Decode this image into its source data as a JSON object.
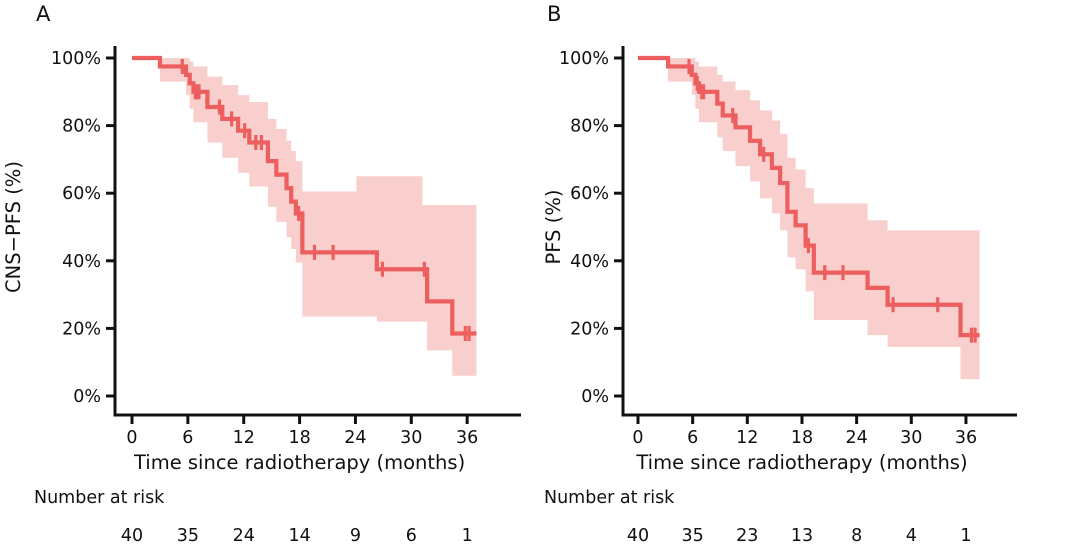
{
  "figure": {
    "background": "#ffffff"
  },
  "colors": {
    "curve": "#ed5e5e",
    "confidence_band": "#f9cfcd",
    "axis": "#111111",
    "text": "#111111"
  },
  "chart_data": [
    {
      "type": "line",
      "subtype": "kaplan-meier-step",
      "panel_label": "A",
      "title": "",
      "xlabel": "Time since radiotherapy (months)",
      "ylabel": "CNS−PFS (%)",
      "xlim": [
        0,
        38
      ],
      "ylim": [
        0,
        100
      ],
      "x_ticks": [
        0,
        6,
        12,
        18,
        24,
        30,
        36
      ],
      "y_ticks": [
        100,
        80,
        60,
        40,
        20,
        0
      ],
      "y_tick_suffix": "%",
      "grid": false,
      "legend": false,
      "survival_steps": [
        [
          0,
          100
        ],
        [
          3,
          97.5
        ],
        [
          5.8,
          95
        ],
        [
          6.2,
          92.5
        ],
        [
          6.6,
          90
        ],
        [
          8.1,
          85.5
        ],
        [
          9.7,
          82
        ],
        [
          11.4,
          78.5
        ],
        [
          12.6,
          75
        ],
        [
          14.6,
          69.5
        ],
        [
          15.5,
          65.5
        ],
        [
          16.6,
          61.5
        ],
        [
          17.1,
          57.5
        ],
        [
          17.6,
          54
        ],
        [
          18.3,
          42.5
        ],
        [
          26.3,
          37.5
        ],
        [
          31.7,
          28
        ],
        [
          34.4,
          18.5
        ]
      ],
      "curve_end_time": 37,
      "censor_marks": [
        [
          5.4,
          97.5
        ],
        [
          6.8,
          90
        ],
        [
          7,
          90
        ],
        [
          7.2,
          90
        ],
        [
          9.4,
          85.5
        ],
        [
          10.7,
          82
        ],
        [
          12.1,
          78.5
        ],
        [
          13.3,
          75
        ],
        [
          13.9,
          75
        ],
        [
          17.9,
          54
        ],
        [
          19.6,
          42.5
        ],
        [
          21.6,
          42.5
        ],
        [
          26.9,
          37.5
        ],
        [
          31.4,
          37.5
        ],
        [
          35.8,
          18.5
        ],
        [
          36.2,
          18.5
        ]
      ],
      "ci_band": [
        [
          3,
          100,
          93
        ],
        [
          5.8,
          100,
          89
        ],
        [
          6.2,
          99,
          85
        ],
        [
          6.6,
          97.5,
          81
        ],
        [
          8.1,
          94.5,
          75
        ],
        [
          9.7,
          92,
          70.5
        ],
        [
          11.4,
          89,
          66
        ],
        [
          12.6,
          87,
          62
        ],
        [
          14.6,
          82,
          56
        ],
        [
          15.5,
          79,
          51.5
        ],
        [
          16.6,
          75.5,
          47
        ],
        [
          17.1,
          72.5,
          43.5
        ],
        [
          17.6,
          69.5,
          39.5
        ],
        [
          18.3,
          60.5,
          23.5
        ],
        [
          24.1,
          65,
          23.5
        ],
        [
          26.3,
          65,
          22
        ],
        [
          31.2,
          56.5,
          22
        ],
        [
          31.7,
          56.5,
          13.5
        ],
        [
          34.4,
          56.5,
          6
        ]
      ],
      "risk_table": {
        "label": "Number at risk",
        "times": [
          0,
          6,
          12,
          18,
          24,
          30,
          36
        ],
        "counts": [
          40,
          35,
          24,
          14,
          9,
          6,
          1
        ]
      }
    },
    {
      "type": "line",
      "subtype": "kaplan-meier-step",
      "panel_label": "B",
      "title": "",
      "xlabel": "Time since radiotherapy (months)",
      "ylabel": "PFS (%)",
      "xlim": [
        0,
        38
      ],
      "ylim": [
        0,
        100
      ],
      "x_ticks": [
        0,
        6,
        12,
        18,
        24,
        30,
        36
      ],
      "y_ticks": [
        100,
        80,
        60,
        40,
        20,
        0
      ],
      "y_tick_suffix": "%",
      "grid": false,
      "legend": false,
      "survival_steps": [
        [
          0,
          100
        ],
        [
          3.3,
          97.5
        ],
        [
          5.9,
          95
        ],
        [
          6.3,
          92.5
        ],
        [
          6.7,
          90
        ],
        [
          8.7,
          86.5
        ],
        [
          9.3,
          83
        ],
        [
          10.7,
          79.5
        ],
        [
          12.3,
          75.5
        ],
        [
          13.4,
          71.5
        ],
        [
          14.7,
          67.5
        ],
        [
          15.6,
          63
        ],
        [
          16.4,
          54.5
        ],
        [
          17.3,
          50.5
        ],
        [
          18.4,
          44.5
        ],
        [
          19.3,
          36.5
        ],
        [
          25.2,
          32
        ],
        [
          27.4,
          27
        ],
        [
          35.4,
          18
        ]
      ],
      "curve_end_time": 37.5,
      "censor_marks": [
        [
          5.6,
          97.5
        ],
        [
          6.5,
          92.5
        ],
        [
          7,
          90
        ],
        [
          7.2,
          90
        ],
        [
          10.4,
          83
        ],
        [
          13.8,
          71.5
        ],
        [
          18.7,
          44.5
        ],
        [
          20.5,
          36.5
        ],
        [
          22.5,
          36.5
        ],
        [
          28,
          27
        ],
        [
          32.9,
          27
        ],
        [
          36.6,
          18
        ],
        [
          37,
          18
        ]
      ],
      "ci_band": [
        [
          3.3,
          100,
          93
        ],
        [
          5.9,
          100,
          89
        ],
        [
          6.3,
          99,
          85
        ],
        [
          6.7,
          97.5,
          81
        ],
        [
          8.7,
          95,
          76.5
        ],
        [
          9.3,
          93,
          72.5
        ],
        [
          10.7,
          90.5,
          68
        ],
        [
          12.3,
          87.5,
          63.5
        ],
        [
          13.4,
          84.5,
          58.5
        ],
        [
          14.7,
          81.5,
          54
        ],
        [
          15.6,
          77.5,
          49
        ],
        [
          16.4,
          70.5,
          41
        ],
        [
          17.3,
          67,
          37.5
        ],
        [
          18.4,
          61.5,
          31
        ],
        [
          19.3,
          57,
          22.5
        ],
        [
          25.2,
          52,
          18
        ],
        [
          27.4,
          49,
          14.5
        ],
        [
          35.4,
          49,
          5
        ]
      ],
      "risk_table": {
        "label": "Number at risk",
        "times": [
          0,
          6,
          12,
          18,
          24,
          30,
          36
        ],
        "counts": [
          40,
          35,
          23,
          13,
          8,
          4,
          1
        ]
      }
    }
  ]
}
